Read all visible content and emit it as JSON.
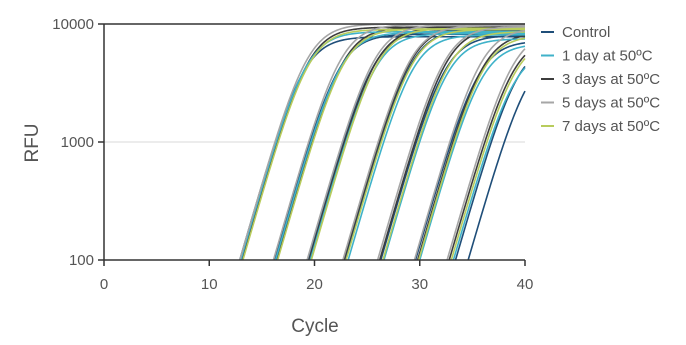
{
  "chart_data": {
    "type": "line",
    "title": "",
    "xlabel": "Cycle",
    "ylabel": "RFU",
    "xlim": [
      0,
      40
    ],
    "ylim": [
      100,
      10000
    ],
    "y_scale": "log",
    "x_ticks": [
      "0",
      "10",
      "20",
      "30",
      "40"
    ],
    "y_ticks": [
      "100",
      "1000",
      "10000"
    ],
    "grid": "horizontal at 1000",
    "legend_position": "right",
    "series": [
      {
        "name": "Control",
        "color": "#1f4e79",
        "curves": [
          {
            "onset": 12.9,
            "plateau": 7800
          },
          {
            "onset": 16.2,
            "plateau": 8200
          },
          {
            "onset": 19.4,
            "plateau": 8800
          },
          {
            "onset": 22.9,
            "plateau": 9000
          },
          {
            "onset": 26.3,
            "plateau": 8000
          },
          {
            "onset": 29.6,
            "plateau": 7200
          },
          {
            "onset": 33.4,
            "plateau": 7000
          },
          {
            "onset": 34.6,
            "plateau": 6000
          }
        ]
      },
      {
        "name": "1 day at 50ºC",
        "color": "#3fb2c9",
        "curves": [
          {
            "onset": 13.0,
            "plateau": 8600
          },
          {
            "onset": 16.3,
            "plateau": 8500
          },
          {
            "onset": 19.6,
            "plateau": 8300
          },
          {
            "onset": 23.2,
            "plateau": 8100
          },
          {
            "onset": 26.6,
            "plateau": 7500
          },
          {
            "onset": 30.0,
            "plateau": 6800
          },
          {
            "onset": 33.2,
            "plateau": 6200
          }
        ]
      },
      {
        "name": "3 days at 50ºC",
        "color": "#3d3d3d",
        "curves": [
          {
            "onset": 13.1,
            "plateau": 9400
          },
          {
            "onset": 16.4,
            "plateau": 9400
          },
          {
            "onset": 19.5,
            "plateau": 9300
          },
          {
            "onset": 22.8,
            "plateau": 9600
          },
          {
            "onset": 26.2,
            "plateau": 9300
          },
          {
            "onset": 29.8,
            "plateau": 8400
          },
          {
            "onset": 32.8,
            "plateau": 7800
          }
        ]
      },
      {
        "name": "5 days at 50ºC",
        "color": "#a6a6a6",
        "curves": [
          {
            "onset": 12.9,
            "plateau": 10000
          },
          {
            "onset": 16.1,
            "plateau": 9900
          },
          {
            "onset": 19.3,
            "plateau": 9800
          },
          {
            "onset": 22.7,
            "plateau": 9700
          },
          {
            "onset": 26.0,
            "plateau": 9500
          },
          {
            "onset": 29.5,
            "plateau": 9200
          },
          {
            "onset": 32.6,
            "plateau": 8800
          }
        ]
      },
      {
        "name": "7 days at 50ºC",
        "color": "#b8cc5c",
        "curves": [
          {
            "onset": 13.2,
            "plateau": 9000
          },
          {
            "onset": 16.5,
            "plateau": 9100
          },
          {
            "onset": 19.7,
            "plateau": 9200
          },
          {
            "onset": 23.0,
            "plateau": 9000
          },
          {
            "onset": 26.5,
            "plateau": 8600
          },
          {
            "onset": 29.9,
            "plateau": 8000
          },
          {
            "onset": 33.0,
            "plateau": 7600
          }
        ]
      }
    ]
  }
}
